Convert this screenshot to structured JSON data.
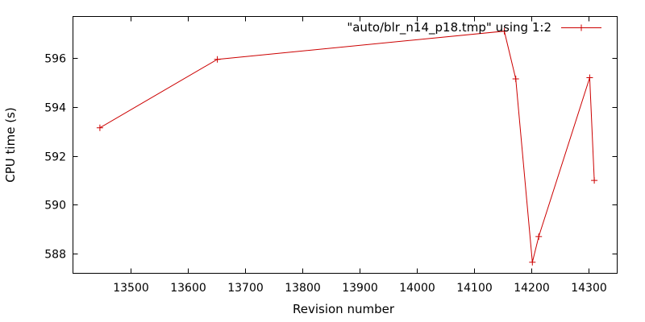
{
  "chart_data": {
    "type": "line",
    "xlabel": "Revision number",
    "ylabel": "CPU time (s)",
    "xlim": [
      13400,
      14350
    ],
    "ylim": [
      587.2,
      597.7
    ],
    "x_ticks": [
      13500,
      13600,
      13700,
      13800,
      13900,
      14000,
      14100,
      14200,
      14300
    ],
    "y_ticks": [
      588,
      590,
      592,
      594,
      596
    ],
    "grid": false,
    "legend_position": "top-right",
    "line_color": "#cc0000",
    "series": [
      {
        "name": "\"auto/blr_n14_p18.tmp\" using 1:2",
        "x": [
          13447,
          13652,
          14153,
          14173,
          14202,
          14213,
          14302,
          14310
        ],
        "y": [
          593.15,
          595.95,
          597.1,
          595.15,
          587.65,
          588.7,
          595.2,
          591.0
        ]
      }
    ]
  }
}
